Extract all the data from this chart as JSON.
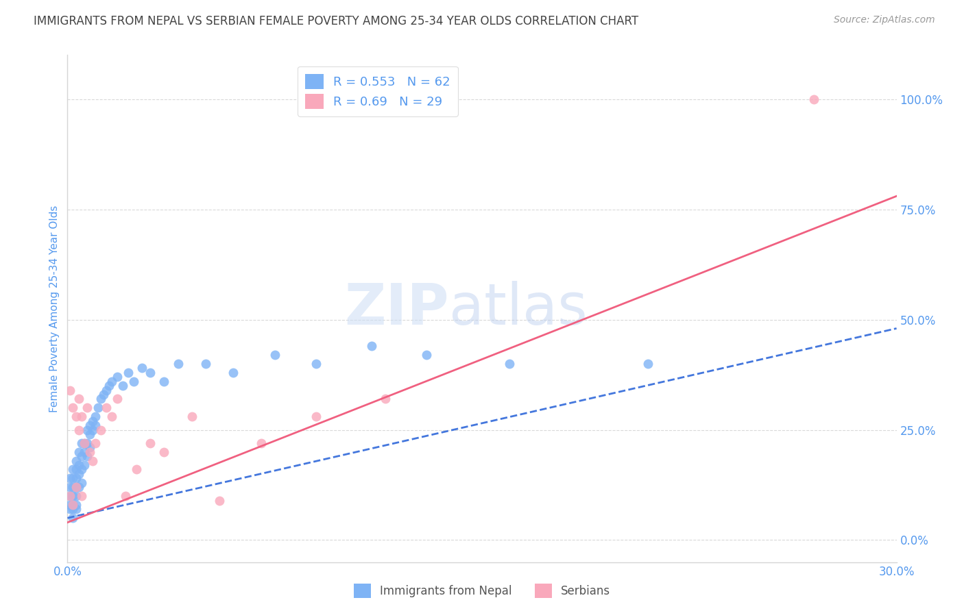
{
  "title": "IMMIGRANTS FROM NEPAL VS SERBIAN FEMALE POVERTY AMONG 25-34 YEAR OLDS CORRELATION CHART",
  "source": "Source: ZipAtlas.com",
  "ylabel": "Female Poverty Among 25-34 Year Olds",
  "xlim": [
    0.0,
    0.3
  ],
  "ylim": [
    -0.05,
    1.1
  ],
  "yticks": [
    0.0,
    0.25,
    0.5,
    0.75,
    1.0
  ],
  "ytick_labels": [
    "0.0%",
    "25.0%",
    "50.0%",
    "75.0%",
    "100.0%"
  ],
  "xticks": [
    0.0,
    0.05,
    0.1,
    0.15,
    0.2,
    0.25,
    0.3
  ],
  "xtick_labels": [
    "0.0%",
    "",
    "",
    "",
    "",
    "",
    "30.0%"
  ],
  "nepal_R": 0.553,
  "nepal_N": 62,
  "serbian_R": 0.69,
  "serbian_N": 29,
  "nepal_color": "#7eb3f5",
  "serbian_color": "#f9a8bb",
  "trend_nepal_color": "#4477dd",
  "trend_serbian_color": "#f06080",
  "background_color": "#ffffff",
  "grid_color": "#d5d5d5",
  "label_color": "#5599ee",
  "title_color": "#444444",
  "watermark_zip": "ZIP",
  "watermark_atlas": "atlas",
  "nepal_scatter_x": [
    0.001,
    0.001,
    0.001,
    0.001,
    0.001,
    0.002,
    0.002,
    0.002,
    0.002,
    0.002,
    0.002,
    0.002,
    0.003,
    0.003,
    0.003,
    0.003,
    0.003,
    0.003,
    0.003,
    0.004,
    0.004,
    0.004,
    0.004,
    0.005,
    0.005,
    0.005,
    0.005,
    0.006,
    0.006,
    0.006,
    0.007,
    0.007,
    0.007,
    0.008,
    0.008,
    0.008,
    0.009,
    0.009,
    0.01,
    0.01,
    0.011,
    0.012,
    0.013,
    0.014,
    0.015,
    0.016,
    0.018,
    0.02,
    0.022,
    0.024,
    0.027,
    0.03,
    0.035,
    0.04,
    0.05,
    0.06,
    0.075,
    0.09,
    0.11,
    0.13,
    0.16,
    0.21
  ],
  "nepal_scatter_y": [
    0.14,
    0.12,
    0.1,
    0.08,
    0.07,
    0.16,
    0.14,
    0.12,
    0.1,
    0.08,
    0.07,
    0.05,
    0.18,
    0.16,
    0.14,
    0.12,
    0.1,
    0.08,
    0.07,
    0.2,
    0.17,
    0.15,
    0.12,
    0.22,
    0.19,
    0.16,
    0.13,
    0.22,
    0.2,
    0.17,
    0.25,
    0.22,
    0.19,
    0.26,
    0.24,
    0.21,
    0.27,
    0.25,
    0.28,
    0.26,
    0.3,
    0.32,
    0.33,
    0.34,
    0.35,
    0.36,
    0.37,
    0.35,
    0.38,
    0.36,
    0.39,
    0.38,
    0.36,
    0.4,
    0.4,
    0.38,
    0.42,
    0.4,
    0.44,
    0.42,
    0.4,
    0.4
  ],
  "serbian_scatter_x": [
    0.001,
    0.001,
    0.002,
    0.002,
    0.003,
    0.003,
    0.004,
    0.004,
    0.005,
    0.005,
    0.006,
    0.007,
    0.008,
    0.009,
    0.01,
    0.012,
    0.014,
    0.016,
    0.018,
    0.021,
    0.025,
    0.03,
    0.035,
    0.045,
    0.055,
    0.07,
    0.09,
    0.115,
    0.27
  ],
  "serbian_scatter_y": [
    0.34,
    0.1,
    0.3,
    0.08,
    0.28,
    0.12,
    0.25,
    0.32,
    0.28,
    0.1,
    0.22,
    0.3,
    0.2,
    0.18,
    0.22,
    0.25,
    0.3,
    0.28,
    0.32,
    0.1,
    0.16,
    0.22,
    0.2,
    0.28,
    0.09,
    0.22,
    0.28,
    0.32,
    1.0
  ],
  "nepal_trend_x0": 0.0,
  "nepal_trend_y0": 0.05,
  "nepal_trend_x1": 0.3,
  "nepal_trend_y1": 0.48,
  "serbian_trend_x0": 0.0,
  "serbian_trend_y0": 0.04,
  "serbian_trend_x1": 0.3,
  "serbian_trend_y1": 0.78
}
